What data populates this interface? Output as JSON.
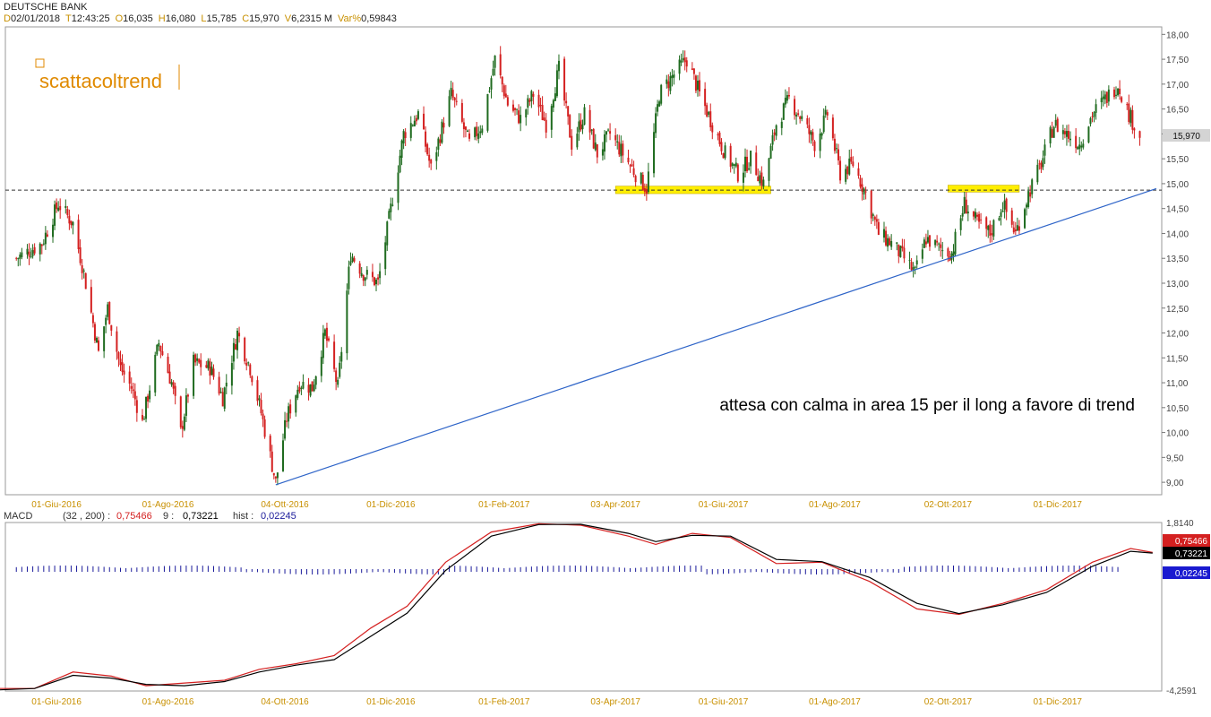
{
  "title": "DEUTSCHE BANK",
  "ohlc_bar": [
    {
      "key": "D",
      "value": "02/01/2018"
    },
    {
      "key": "T",
      "value": "12:43:25"
    },
    {
      "key": "O",
      "value": "16,035"
    },
    {
      "key": "H",
      "value": "16,080"
    },
    {
      "key": "L",
      "value": "15,785"
    },
    {
      "key": "C",
      "value": "15,970"
    },
    {
      "key": "V",
      "value": "6,2315 M"
    },
    {
      "key": "Var%",
      "value": "0,59843"
    }
  ],
  "watermark": "scattacoltrend",
  "annotation": "attesa con calma in area 15 per il long a favore di trend",
  "macd_header": {
    "label": "MACD",
    "params": "(32 , 200) :",
    "macd_value": "0,75466",
    "signal_label": "9 :",
    "signal_value": "0,73221",
    "hist_label": "hist :",
    "hist_value": "0,02245"
  },
  "colors": {
    "up_candle": "#1f6b1f",
    "down_candle": "#d42020",
    "trendline": "#2e64c8",
    "support_zone": "#ffee00",
    "axis_date_label": "#c89000",
    "macd_line": "#d42020",
    "signal_line": "#000000",
    "histogram": "#1a1a9a"
  },
  "chart_data": [
    {
      "type": "candlestick",
      "title": "DEUTSCHE BANK",
      "x_tick_labels": [
        "01-Giu-2016",
        "01-Ago-2016",
        "04-Ott-2016",
        "01-Dic-2016",
        "01-Feb-2017",
        "03-Apr-2017",
        "01-Giu-2017",
        "01-Ago-2017",
        "02-Ott-2017",
        "01-Dic-2017"
      ],
      "y_tick_labels": [
        "9,00",
        "9,50",
        "10,00",
        "10,50",
        "11,00",
        "11,50",
        "12,00",
        "12,50",
        "13,00",
        "13,50",
        "14,00",
        "14,50",
        "15,00",
        "15,50",
        "16,00",
        "16,50",
        "17,00",
        "17,50",
        "18,00"
      ],
      "ylim": [
        8.75,
        18.15
      ],
      "last_price": 15.97,
      "last_price_label": "15,970",
      "horizontal_level": 14.87,
      "support_zones": [
        {
          "from_date": "2017-04-03",
          "to_date": "2017-06-27",
          "low": 14.8,
          "high": 14.95
        },
        {
          "from_date": "2017-10-02",
          "to_date": "2017-11-10",
          "low": 14.83,
          "high": 14.97
        }
      ],
      "trendline": {
        "from": {
          "date": "2016-09-29",
          "price": 8.95
        },
        "to": {
          "date": "2018-01-24",
          "price": 14.9
        }
      },
      "price_path": [
        {
          "date": "2016-05-10",
          "price": 13.5
        },
        {
          "date": "2016-05-24",
          "price": 13.8
        },
        {
          "date": "2016-06-02",
          "price": 14.6
        },
        {
          "date": "2016-06-10",
          "price": 14.2
        },
        {
          "date": "2016-06-16",
          "price": 13.2
        },
        {
          "date": "2016-06-24",
          "price": 11.6
        },
        {
          "date": "2016-06-29",
          "price": 12.5
        },
        {
          "date": "2016-07-06",
          "price": 11.3
        },
        {
          "date": "2016-07-12",
          "price": 10.9
        },
        {
          "date": "2016-07-18",
          "price": 10.2
        },
        {
          "date": "2016-07-27",
          "price": 11.8
        },
        {
          "date": "2016-08-03",
          "price": 11.0
        },
        {
          "date": "2016-08-08",
          "price": 10.0
        },
        {
          "date": "2016-08-15",
          "price": 11.4
        },
        {
          "date": "2016-08-24",
          "price": 11.3
        },
        {
          "date": "2016-08-31",
          "price": 10.7
        },
        {
          "date": "2016-09-08",
          "price": 12.0
        },
        {
          "date": "2016-09-15",
          "price": 11.3
        },
        {
          "date": "2016-09-21",
          "price": 10.4
        },
        {
          "date": "2016-09-29",
          "price": 9.0
        },
        {
          "date": "2016-10-05",
          "price": 10.3
        },
        {
          "date": "2016-10-12",
          "price": 11.0
        },
        {
          "date": "2016-10-19",
          "price": 10.9
        },
        {
          "date": "2016-10-26",
          "price": 12.0
        },
        {
          "date": "2016-11-02",
          "price": 10.9
        },
        {
          "date": "2016-11-09",
          "price": 13.6
        },
        {
          "date": "2016-11-16",
          "price": 13.2
        },
        {
          "date": "2016-11-24",
          "price": 13.0
        },
        {
          "date": "2016-12-01",
          "price": 14.5
        },
        {
          "date": "2016-12-08",
          "price": 16.0
        },
        {
          "date": "2016-12-16",
          "price": 16.4
        },
        {
          "date": "2016-12-23",
          "price": 15.3
        },
        {
          "date": "2017-01-03",
          "price": 16.8
        },
        {
          "date": "2017-01-13",
          "price": 15.8
        },
        {
          "date": "2017-01-20",
          "price": 16.2
        },
        {
          "date": "2017-01-27",
          "price": 17.5
        },
        {
          "date": "2017-02-03",
          "price": 16.6
        },
        {
          "date": "2017-02-10",
          "price": 16.3
        },
        {
          "date": "2017-02-17",
          "price": 16.8
        },
        {
          "date": "2017-02-24",
          "price": 16.2
        },
        {
          "date": "2017-03-03",
          "price": 17.3
        },
        {
          "date": "2017-03-10",
          "price": 15.8
        },
        {
          "date": "2017-03-17",
          "price": 16.4
        },
        {
          "date": "2017-03-24",
          "price": 15.6
        },
        {
          "date": "2017-03-31",
          "price": 16.0
        },
        {
          "date": "2017-04-07",
          "price": 15.6
        },
        {
          "date": "2017-04-14",
          "price": 15.2
        },
        {
          "date": "2017-04-20",
          "price": 14.9
        },
        {
          "date": "2017-04-27",
          "price": 16.8
        },
        {
          "date": "2017-05-05",
          "price": 17.2
        },
        {
          "date": "2017-05-12",
          "price": 17.5
        },
        {
          "date": "2017-05-19",
          "price": 16.8
        },
        {
          "date": "2017-05-26",
          "price": 16.2
        },
        {
          "date": "2017-06-02",
          "price": 15.6
        },
        {
          "date": "2017-06-09",
          "price": 15.2
        },
        {
          "date": "2017-06-16",
          "price": 15.5
        },
        {
          "date": "2017-06-23",
          "price": 15.0
        },
        {
          "date": "2017-06-30",
          "price": 16.2
        },
        {
          "date": "2017-07-07",
          "price": 16.7
        },
        {
          "date": "2017-07-14",
          "price": 16.3
        },
        {
          "date": "2017-07-21",
          "price": 15.8
        },
        {
          "date": "2017-07-28",
          "price": 16.4
        },
        {
          "date": "2017-08-04",
          "price": 15.2
        },
        {
          "date": "2017-08-11",
          "price": 15.4
        },
        {
          "date": "2017-08-18",
          "price": 14.8
        },
        {
          "date": "2017-08-25",
          "price": 14.0
        },
        {
          "date": "2017-09-01",
          "price": 13.8
        },
        {
          "date": "2017-09-08",
          "price": 13.5
        },
        {
          "date": "2017-09-14",
          "price": 13.2
        },
        {
          "date": "2017-09-20",
          "price": 13.9
        },
        {
          "date": "2017-09-27",
          "price": 13.7
        },
        {
          "date": "2017-10-04",
          "price": 13.6
        },
        {
          "date": "2017-10-11",
          "price": 14.6
        },
        {
          "date": "2017-10-18",
          "price": 14.2
        },
        {
          "date": "2017-10-25",
          "price": 14.0
        },
        {
          "date": "2017-11-01",
          "price": 14.6
        },
        {
          "date": "2017-11-08",
          "price": 14.0
        },
        {
          "date": "2017-11-15",
          "price": 14.8
        },
        {
          "date": "2017-11-22",
          "price": 15.4
        },
        {
          "date": "2017-11-29",
          "price": 16.2
        },
        {
          "date": "2017-12-06",
          "price": 16.0
        },
        {
          "date": "2017-12-13",
          "price": 15.8
        },
        {
          "date": "2017-12-20",
          "price": 16.4
        },
        {
          "date": "2017-12-27",
          "price": 16.7
        },
        {
          "date": "2018-01-03",
          "price": 17.0
        },
        {
          "date": "2018-01-09",
          "price": 16.4
        },
        {
          "date": "2018-01-15",
          "price": 15.97
        }
      ]
    },
    {
      "type": "line",
      "title": "MACD",
      "x_tick_labels": [
        "01-Giu-2016",
        "01-Ago-2016",
        "04-Ott-2016",
        "01-Dic-2016",
        "01-Feb-2017",
        "03-Apr-2017",
        "01-Giu-2017",
        "01-Ago-2017",
        "02-Ott-2017",
        "01-Dic-2017"
      ],
      "y_tick_labels": [
        "1,8140",
        "-4,2591"
      ],
      "ylim": [
        -4.2591,
        1.814
      ],
      "last_labels": {
        "macd": "0,75466",
        "signal": "0,73221",
        "hist": "0,02245"
      },
      "series": [
        {
          "name": "MACD",
          "points": [
            {
              "date": "2016-05-01",
              "value": -4.2
            },
            {
              "date": "2016-05-20",
              "value": -4.2
            },
            {
              "date": "2016-06-10",
              "value": -3.6
            },
            {
              "date": "2016-07-01",
              "value": -3.75
            },
            {
              "date": "2016-07-20",
              "value": -4.1
            },
            {
              "date": "2016-08-10",
              "value": -4.0
            },
            {
              "date": "2016-09-01",
              "value": -3.9
            },
            {
              "date": "2016-09-20",
              "value": -3.5
            },
            {
              "date": "2016-10-10",
              "value": -3.3
            },
            {
              "date": "2016-10-31",
              "value": -3.0
            },
            {
              "date": "2016-11-20",
              "value": -2.0
            },
            {
              "date": "2016-12-10",
              "value": -1.2
            },
            {
              "date": "2016-12-31",
              "value": 0.4
            },
            {
              "date": "2017-01-25",
              "value": 1.5
            },
            {
              "date": "2017-02-20",
              "value": 1.8
            },
            {
              "date": "2017-03-15",
              "value": 1.75
            },
            {
              "date": "2017-04-10",
              "value": 1.35
            },
            {
              "date": "2017-04-25",
              "value": 1.05
            },
            {
              "date": "2017-05-15",
              "value": 1.45
            },
            {
              "date": "2017-06-05",
              "value": 1.3
            },
            {
              "date": "2017-06-30",
              "value": 0.35
            },
            {
              "date": "2017-07-25",
              "value": 0.4
            },
            {
              "date": "2017-08-20",
              "value": -0.3
            },
            {
              "date": "2017-09-15",
              "value": -1.3
            },
            {
              "date": "2017-10-08",
              "value": -1.5
            },
            {
              "date": "2017-11-01",
              "value": -1.1
            },
            {
              "date": "2017-11-25",
              "value": -0.6
            },
            {
              "date": "2017-12-20",
              "value": 0.4
            },
            {
              "date": "2018-01-10",
              "value": 0.9
            },
            {
              "date": "2018-01-22",
              "value": 0.75466
            }
          ]
        },
        {
          "name": "9",
          "points": [
            {
              "date": "2016-05-01",
              "value": -4.25
            },
            {
              "date": "2016-05-20",
              "value": -4.2
            },
            {
              "date": "2016-06-10",
              "value": -3.72
            },
            {
              "date": "2016-07-01",
              "value": -3.82
            },
            {
              "date": "2016-07-20",
              "value": -4.05
            },
            {
              "date": "2016-08-10",
              "value": -4.1
            },
            {
              "date": "2016-09-01",
              "value": -3.95
            },
            {
              "date": "2016-09-20",
              "value": -3.6
            },
            {
              "date": "2016-10-10",
              "value": -3.35
            },
            {
              "date": "2016-10-31",
              "value": -3.15
            },
            {
              "date": "2016-11-20",
              "value": -2.3
            },
            {
              "date": "2016-12-10",
              "value": -1.45
            },
            {
              "date": "2016-12-31",
              "value": 0.1
            },
            {
              "date": "2017-01-25",
              "value": 1.35
            },
            {
              "date": "2017-02-20",
              "value": 1.77
            },
            {
              "date": "2017-03-15",
              "value": 1.78
            },
            {
              "date": "2017-04-10",
              "value": 1.45
            },
            {
              "date": "2017-04-25",
              "value": 1.15
            },
            {
              "date": "2017-05-15",
              "value": 1.38
            },
            {
              "date": "2017-06-05",
              "value": 1.35
            },
            {
              "date": "2017-06-30",
              "value": 0.5
            },
            {
              "date": "2017-07-25",
              "value": 0.42
            },
            {
              "date": "2017-08-20",
              "value": -0.15
            },
            {
              "date": "2017-09-15",
              "value": -1.1
            },
            {
              "date": "2017-10-08",
              "value": -1.47
            },
            {
              "date": "2017-11-01",
              "value": -1.15
            },
            {
              "date": "2017-11-25",
              "value": -0.7
            },
            {
              "date": "2017-12-20",
              "value": 0.25
            },
            {
              "date": "2018-01-10",
              "value": 0.8
            },
            {
              "date": "2018-01-22",
              "value": 0.73221
            }
          ]
        }
      ]
    }
  ]
}
